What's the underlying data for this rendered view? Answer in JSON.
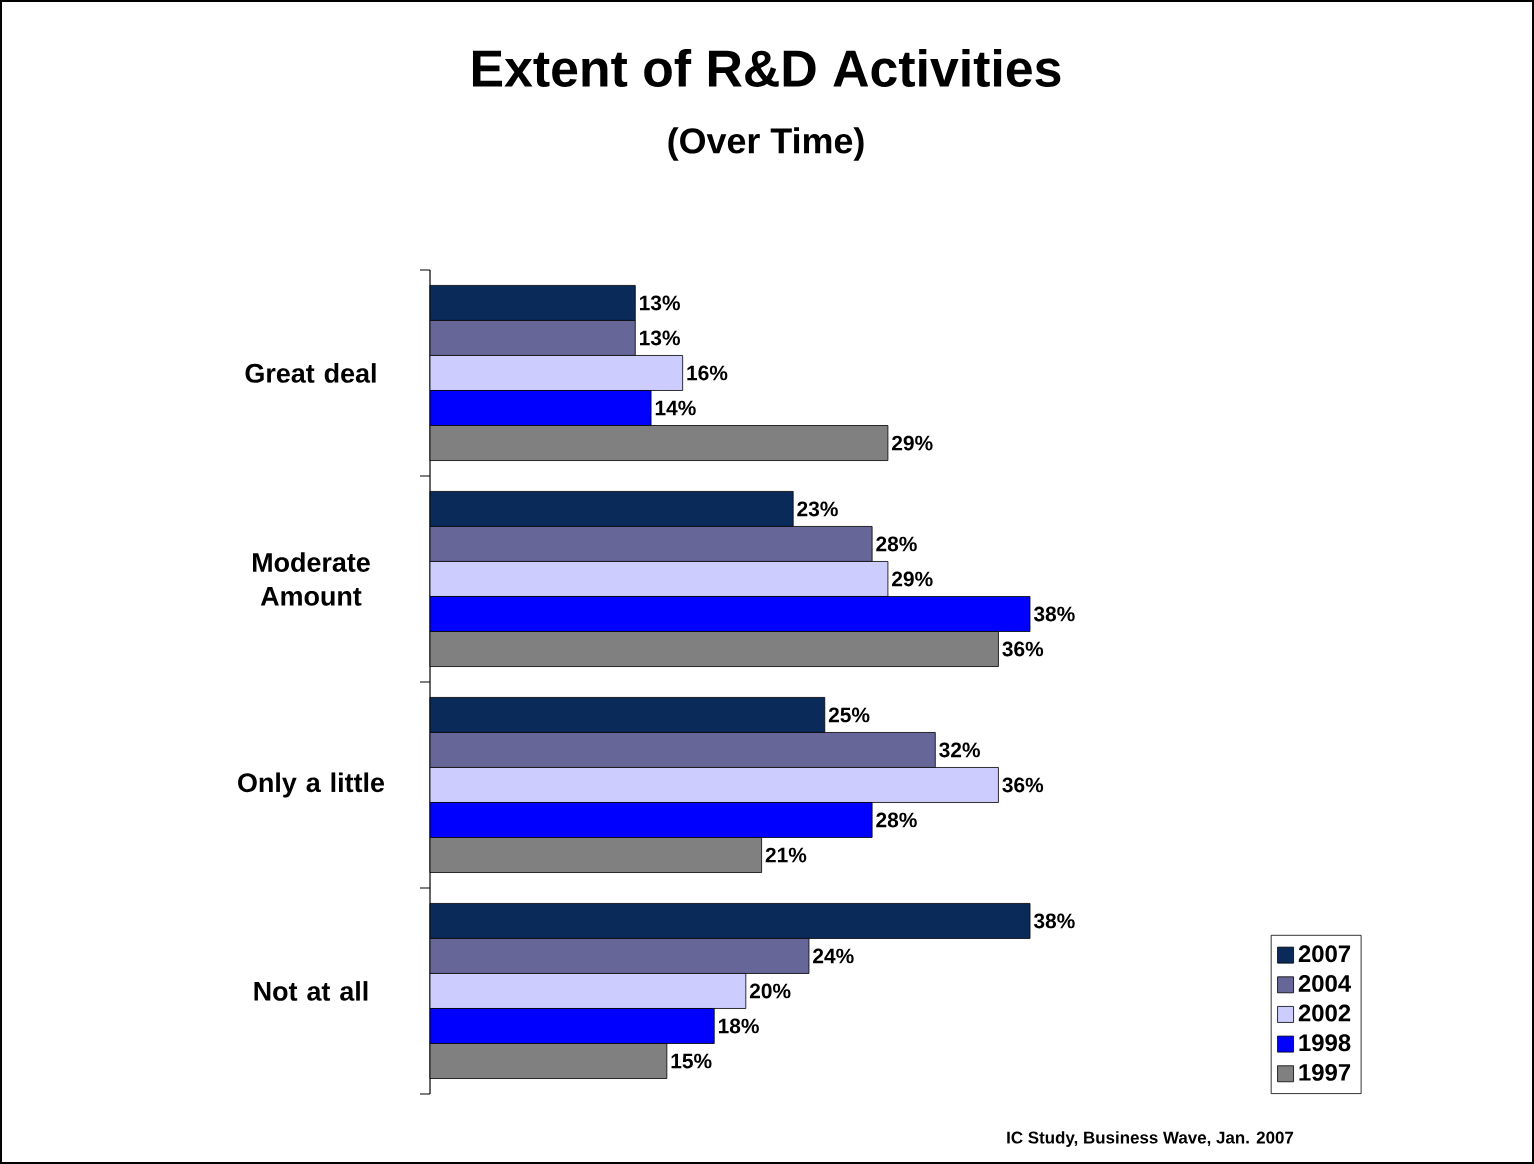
{
  "chart_data": {
    "type": "bar",
    "orientation": "horizontal",
    "title": "Extent of R&D Activities",
    "subtitle": "(Over Time)",
    "categories": [
      "Great deal",
      "Moderate Amount",
      "Only a little",
      "Not at all"
    ],
    "series": [
      {
        "name": "2007",
        "color": "#0a2a5a",
        "values": [
          13,
          23,
          25,
          38
        ],
        "value_labels": [
          "13%",
          "23%",
          "25%",
          "38%"
        ]
      },
      {
        "name": "2004",
        "color": "#666699",
        "values": [
          13,
          28,
          32,
          24
        ],
        "value_labels": [
          "13%",
          "28%",
          "32%",
          "24%"
        ]
      },
      {
        "name": "2002",
        "color": "#ccccff",
        "values": [
          16,
          29,
          36,
          20
        ],
        "value_labels": [
          "16%",
          "29%",
          "36%",
          "20%"
        ]
      },
      {
        "name": "1998",
        "color": "#0000ff",
        "values": [
          14,
          38,
          28,
          18
        ],
        "value_labels": [
          "14%",
          "38%",
          "28%",
          "18%"
        ]
      },
      {
        "name": "1997",
        "color": "#808080",
        "values": [
          29,
          36,
          21,
          15
        ],
        "value_labels": [
          "29%",
          "36%",
          "21%",
          "15%"
        ]
      }
    ],
    "legend": "bottom right",
    "annotations": [
      "IC Study, Business Wave, Jan. 2007"
    ]
  }
}
